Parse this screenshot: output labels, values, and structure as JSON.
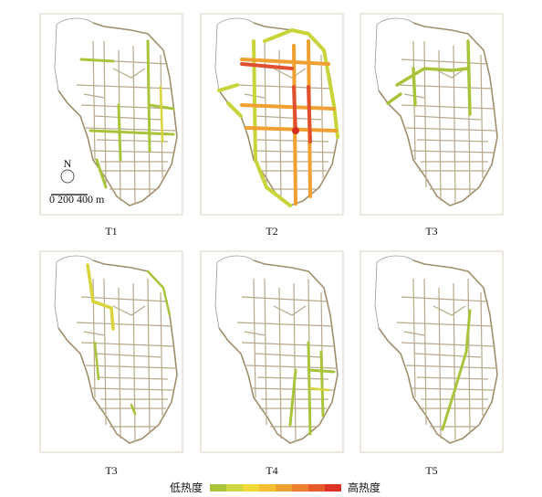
{
  "panels": [
    {
      "label": "T1"
    },
    {
      "label": "T2"
    },
    {
      "label": "T3"
    },
    {
      "label": "T3"
    },
    {
      "label": "T4"
    },
    {
      "label": "T5"
    }
  ],
  "scale": {
    "north": "N",
    "label": "0  200  400 m"
  },
  "legend": {
    "low": "低热度",
    "high": "高热度"
  }
}
